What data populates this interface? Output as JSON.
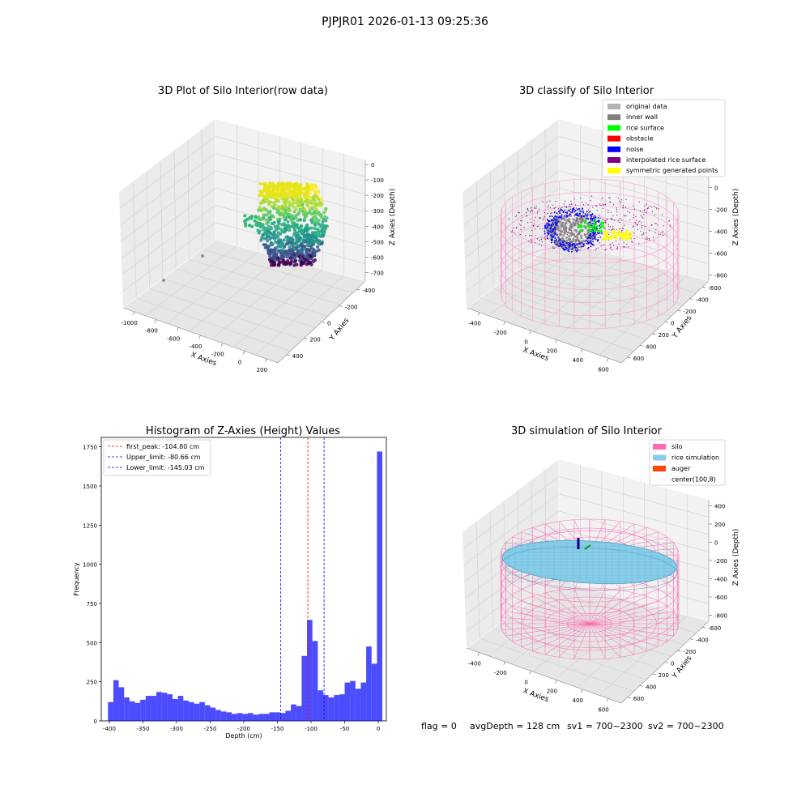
{
  "suptitle": "PJPJR01 2026-01-13 09:25:36",
  "footer": {
    "flag": "flag = 0",
    "avg_depth": "avgDepth = 128 cm",
    "sv1": "sv1 = 700~2300",
    "sv2": "sv2 = 700~2300"
  },
  "colors": {
    "original_data": "#b3b3b3",
    "inner_wall": "#808080",
    "rice_surface": "#00ff00",
    "obstacle": "#ff0000",
    "noise": "#0000ff",
    "interpolated_rice_surface": "#800080",
    "symmetric_generated_points": "#ffff00",
    "silo": "#ff69b4",
    "rice_simulation": "#87ceeb",
    "auger": "#ff4500",
    "histogram_bar": "#0000ff",
    "first_peak_line": "#ff0000",
    "limit_line": "#0000ff"
  },
  "chart_data": [
    {
      "type": "scatter",
      "subtype": "3d",
      "title": "3D Plot of Silo Interior(row data)",
      "xlabel": "X Axies",
      "ylabel": "Y Axies",
      "zlabel": "Z Axies (Depth)",
      "x_ticks": [
        -1000,
        -800,
        -600,
        -400,
        -200,
        0,
        200
      ],
      "y_ticks": [
        -400,
        -200,
        0,
        200,
        400
      ],
      "z_ticks": [
        0,
        -100,
        -200,
        -300,
        -400,
        -500,
        -600,
        -700
      ],
      "colormap": "viridis",
      "grid": true
    },
    {
      "type": "scatter",
      "subtype": "3d",
      "title": "3D classify of Silo Interior",
      "xlabel": "X Axies",
      "ylabel": "Y Axies",
      "zlabel": "Z Axies (Depth)",
      "x_ticks": [
        -400,
        -200,
        0,
        200,
        400,
        600
      ],
      "y_ticks": [
        -600,
        -400,
        -200,
        0,
        200,
        400,
        600
      ],
      "z_ticks": [
        200,
        0,
        -200,
        -400,
        -600,
        -800
      ],
      "legend_position": "top-right",
      "legend": [
        {
          "label": "original data",
          "color_key": "original_data"
        },
        {
          "label": "inner wall",
          "color_key": "inner_wall"
        },
        {
          "label": "rice surface",
          "color_key": "rice_surface"
        },
        {
          "label": "obstacle",
          "color_key": "obstacle"
        },
        {
          "label": "noise",
          "color_key": "noise"
        },
        {
          "label": "interpolated rice surface",
          "color_key": "interpolated_rice_surface"
        },
        {
          "label": "symmetric generated points",
          "color_key": "symmetric_generated_points"
        }
      ],
      "grid": true
    },
    {
      "type": "bar",
      "subtype": "histogram",
      "title": "Histogram of Z-Axies (Height) Values",
      "xlabel": "Depth (cm)",
      "ylabel": "Frequency",
      "xlim": [
        -412,
        12
      ],
      "ylim": [
        0,
        1810
      ],
      "x_ticks": [
        -400,
        -350,
        -300,
        -250,
        -200,
        -150,
        -100,
        -50,
        0
      ],
      "y_ticks": [
        0,
        250,
        500,
        750,
        1000,
        1250,
        1500,
        1750
      ],
      "bin_width": 8,
      "bins_start": [
        -402,
        -394,
        -386,
        -378,
        -370,
        -362,
        -354,
        -346,
        -338,
        -330,
        -322,
        -314,
        -306,
        -298,
        -290,
        -282,
        -274,
        -266,
        -258,
        -250,
        -242,
        -234,
        -226,
        -218,
        -210,
        -202,
        -194,
        -186,
        -178,
        -170,
        -162,
        -154,
        -146,
        -138,
        -130,
        -122,
        -114,
        -106,
        -98,
        -90,
        -82,
        -74,
        -66,
        -58,
        -50,
        -42,
        -34,
        -26,
        -18,
        -10,
        -2
      ],
      "values": [
        120,
        260,
        215,
        150,
        125,
        115,
        135,
        160,
        160,
        185,
        180,
        170,
        140,
        160,
        130,
        120,
        110,
        120,
        100,
        85,
        70,
        60,
        55,
        45,
        50,
        45,
        50,
        40,
        45,
        45,
        55,
        55,
        50,
        65,
        105,
        95,
        415,
        645,
        510,
        195,
        165,
        150,
        165,
        170,
        245,
        255,
        205,
        245,
        475,
        365,
        1720
      ],
      "lines": [
        {
          "label": "first_peak: -104.80 cm",
          "x": -104.8,
          "color_key": "first_peak_line"
        },
        {
          "label": "Upper_limit: -80.66 cm",
          "x": -80.66,
          "color_key": "limit_line"
        },
        {
          "label": "Lower_limit: -145.03 cm",
          "x": -145.03,
          "color_key": "limit_line"
        }
      ],
      "legend_position": "top-left",
      "grid": false
    },
    {
      "type": "scatter",
      "subtype": "3d-surface",
      "title": "3D simulation of Silo Interior",
      "xlabel": "X Axies",
      "ylabel": "Y Axies",
      "zlabel": "Z Axies (Depth)",
      "x_ticks": [
        -400,
        -200,
        0,
        200,
        400,
        600
      ],
      "y_ticks": [
        -600,
        -400,
        -200,
        0,
        200,
        400,
        600
      ],
      "z_ticks": [
        400,
        200,
        0,
        -200,
        -400,
        -600,
        -800
      ],
      "legend_position": "top-right",
      "legend": [
        {
          "label": "silo",
          "color_key": "silo"
        },
        {
          "label": "rice simulation",
          "color_key": "rice_simulation"
        },
        {
          "label": "auger",
          "color_key": "auger"
        },
        {
          "label": "center(100,8)",
          "color_key": ""
        }
      ],
      "grid": true
    }
  ]
}
